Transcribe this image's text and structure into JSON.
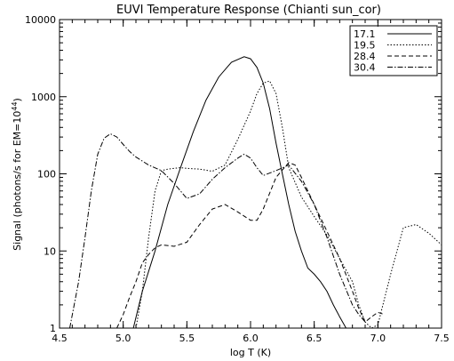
{
  "chart_data": {
    "type": "line",
    "title": "EUVI Temperature Response (Chianti sun_cor)",
    "xlabel": "log T (K)",
    "ylabel": "Signal (photons/s for EM=10",
    "ylabel_exp": "44",
    "ylabel_tail": ")",
    "xlim": [
      4.5,
      7.5
    ],
    "ylim": [
      1,
      10000
    ],
    "yscale": "log",
    "grid": false,
    "legend_position": "top-right",
    "x_ticks": [
      4.5,
      5.0,
      5.5,
      6.0,
      6.5,
      7.0,
      7.5
    ],
    "x_tick_labels": [
      "4.5",
      "5.0",
      "5.5",
      "6.0",
      "6.5",
      "7.0",
      "7.5"
    ],
    "y_ticks": [
      1,
      10,
      100,
      1000,
      10000
    ],
    "y_tick_labels": [
      "1",
      "10",
      "100",
      "1000",
      "10000"
    ],
    "series": [
      {
        "name": "17.1",
        "dash": "",
        "x": [
          5.08,
          5.15,
          5.25,
          5.35,
          5.45,
          5.55,
          5.65,
          5.75,
          5.85,
          5.95,
          6.0,
          6.05,
          6.1,
          6.15,
          6.2,
          6.25,
          6.3,
          6.35,
          6.4,
          6.45,
          6.5,
          6.55,
          6.6,
          6.65,
          6.7,
          6.75
        ],
        "y": [
          1,
          3,
          10,
          40,
          120,
          350,
          900,
          1800,
          2800,
          3300,
          3100,
          2400,
          1500,
          700,
          250,
          100,
          40,
          18,
          10,
          6,
          5,
          4,
          3,
          2,
          1.4,
          1
        ]
      },
      {
        "name": "19.5",
        "dash": "1.5,2",
        "x": [
          5.1,
          5.15,
          5.2,
          5.25,
          5.3,
          5.35,
          5.4,
          5.45,
          5.5,
          5.6,
          5.7,
          5.8,
          5.9,
          6.0,
          6.05,
          6.1,
          6.15,
          6.2,
          6.25,
          6.3,
          6.4,
          6.5,
          6.6,
          6.7,
          6.8,
          6.85,
          6.9,
          6.95,
          7.0,
          7.1,
          7.2,
          7.3,
          7.4,
          7.5
        ],
        "y": [
          1,
          3,
          15,
          60,
          110,
          115,
          118,
          120,
          118,
          115,
          108,
          130,
          280,
          650,
          1100,
          1500,
          1600,
          1100,
          400,
          120,
          50,
          28,
          16,
          8,
          4,
          2,
          1.2,
          1,
          1.1,
          5,
          20,
          22,
          17,
          12
        ]
      },
      {
        "name": "28.4",
        "dash": "5,3",
        "x": [
          4.95,
          5.0,
          5.05,
          5.1,
          5.15,
          5.2,
          5.25,
          5.3,
          5.4,
          5.5,
          5.6,
          5.7,
          5.8,
          5.9,
          6.0,
          6.05,
          6.1,
          6.2,
          6.3,
          6.35,
          6.4,
          6.5,
          6.6,
          6.7,
          6.8,
          6.85,
          6.9,
          6.95,
          7.0,
          7.05
        ],
        "y": [
          1,
          1.5,
          2.5,
          4,
          7,
          9,
          11,
          12,
          11.5,
          13,
          22,
          35,
          40,
          32,
          25,
          25,
          35,
          90,
          140,
          130,
          90,
          40,
          18,
          8,
          3,
          1.8,
          1.2,
          1.4,
          1.6,
          1.5
        ]
      },
      {
        "name": "30.4",
        "dash": "6,2,1.5,2",
        "x": [
          4.58,
          4.65,
          4.7,
          4.75,
          4.8,
          4.85,
          4.9,
          4.95,
          5.0,
          5.05,
          5.1,
          5.2,
          5.3,
          5.4,
          5.5,
          5.6,
          5.7,
          5.8,
          5.9,
          5.95,
          6.0,
          6.05,
          6.1,
          6.2,
          6.3,
          6.4,
          6.5,
          6.6,
          6.7,
          6.8,
          6.85,
          6.9
        ],
        "y": [
          1,
          4,
          15,
          60,
          180,
          290,
          330,
          300,
          240,
          195,
          165,
          130,
          110,
          75,
          48,
          55,
          85,
          120,
          160,
          180,
          160,
          120,
          95,
          110,
          130,
          80,
          40,
          15,
          5,
          2,
          1.5,
          1.2
        ]
      }
    ]
  }
}
